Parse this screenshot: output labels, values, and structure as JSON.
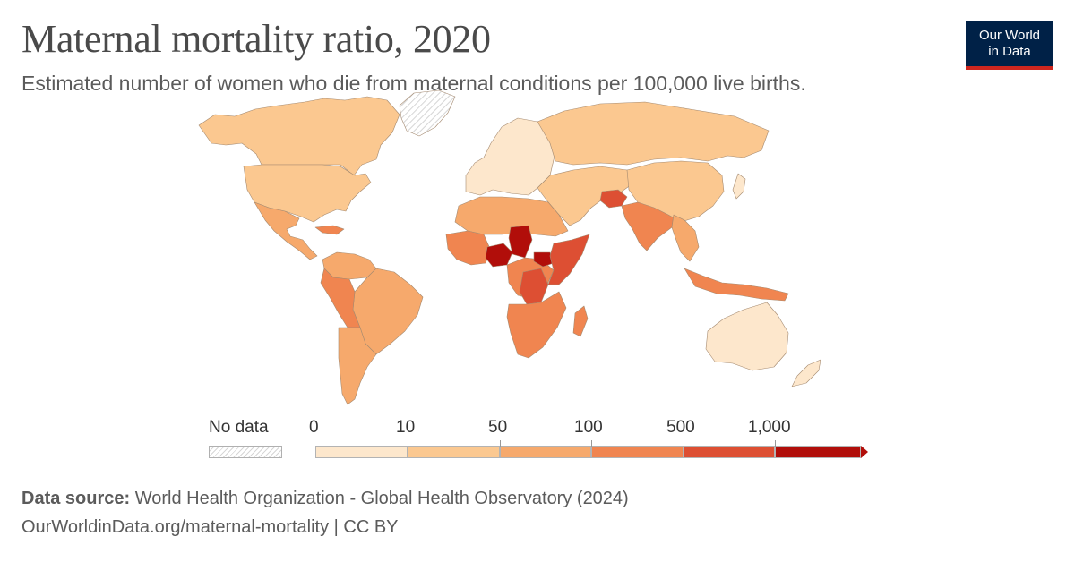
{
  "header": {
    "title": "Maternal mortality ratio, 2020",
    "subtitle": "Estimated number of women who die from maternal conditions per 100,000 live births."
  },
  "logo": {
    "line1": "Our World",
    "line2": "in Data"
  },
  "legend": {
    "no_data_label": "No data",
    "tick_labels": [
      "0",
      "10",
      "50",
      "100",
      "500",
      "1,000"
    ],
    "bins": [
      {
        "range": "0–10",
        "color": "#fde7cc"
      },
      {
        "range": "10–50",
        "color": "#fbc890"
      },
      {
        "range": "50–100",
        "color": "#f6a96c"
      },
      {
        "range": "100–500",
        "color": "#f08550"
      },
      {
        "range": "500–1,000",
        "color": "#dd4f33"
      },
      {
        "range": "1,000+",
        "color": "#b10e0a"
      }
    ]
  },
  "colors": {
    "ocean_none": "#ffffff",
    "border": "#a08f7c",
    "no_data": "#e6e6e6"
  },
  "footer": {
    "source_label": "Data source:",
    "source_text": "World Health Organization - Global Health Observatory (2024)",
    "url_line": "OurWorldinData.org/maternal-mortality | CC BY"
  }
}
